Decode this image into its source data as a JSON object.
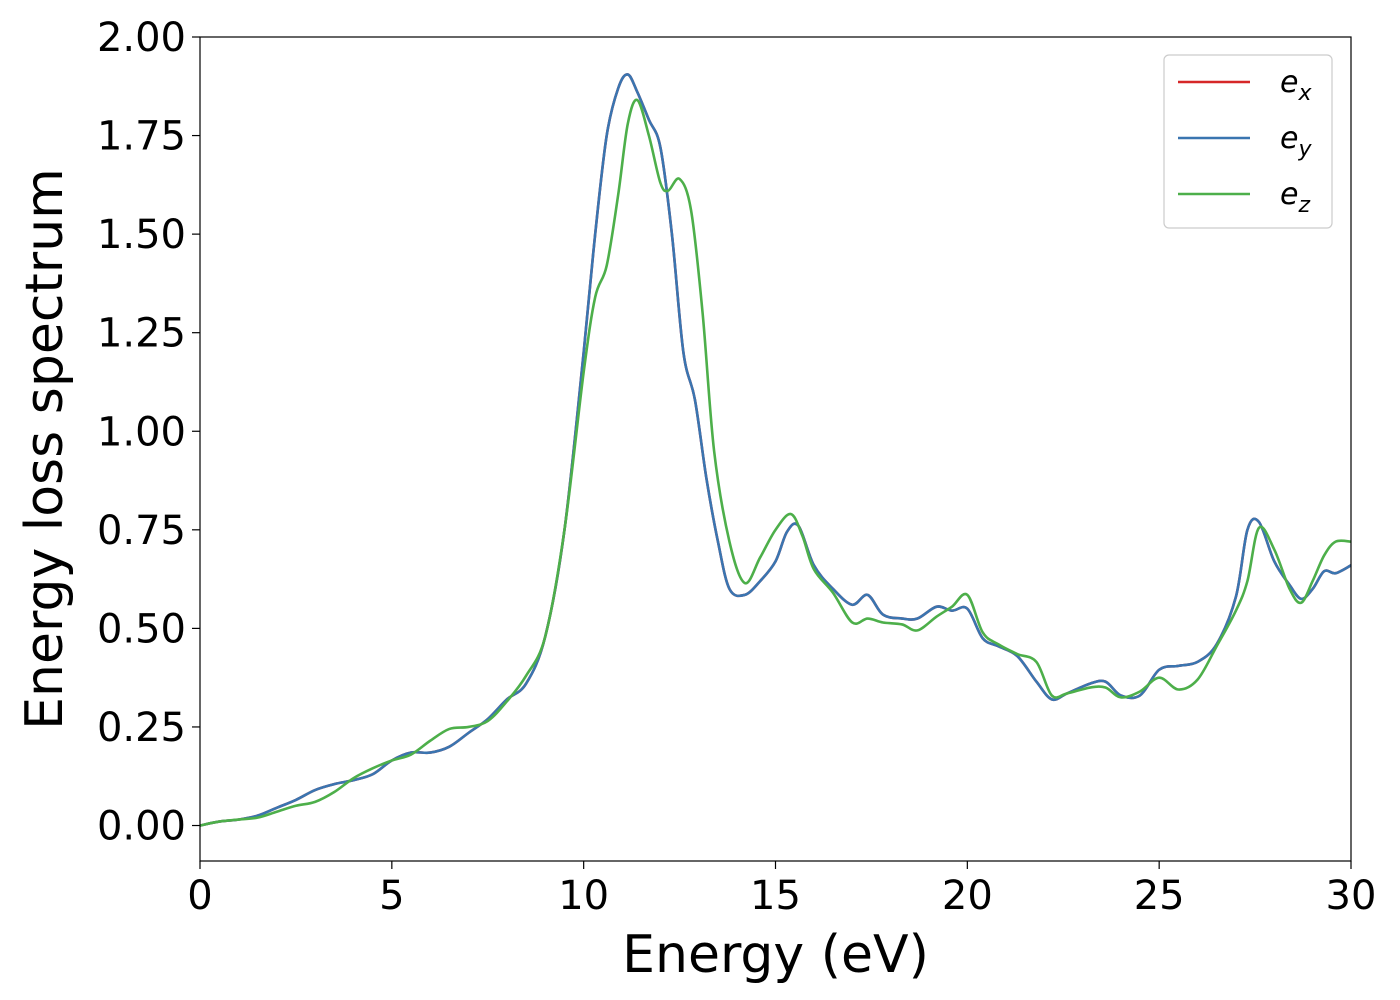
{
  "chart_data": {
    "type": "line",
    "title": "",
    "xlabel": "Energy (eV)",
    "ylabel": "Energy loss spectrum",
    "xlim": [
      0,
      30
    ],
    "ylim": [
      -0.09,
      2.0
    ],
    "xticks": [
      "0",
      "5",
      "10",
      "15",
      "20",
      "25",
      "30"
    ],
    "yticks": [
      "0.00",
      "0.25",
      "0.50",
      "0.75",
      "1.00",
      "1.25",
      "1.50",
      "1.75",
      "2.00"
    ],
    "grid": false,
    "legend_position": "top-right",
    "series": [
      {
        "name": "e_x",
        "legend_base": "e",
        "legend_sub": "x",
        "color": "#d62728",
        "x": [
          0,
          0.5,
          1,
          1.5,
          2,
          2.5,
          3,
          3.5,
          4,
          4.5,
          5,
          5.5,
          6,
          6.5,
          7,
          7.5,
          8,
          8.5,
          9,
          9.5,
          10,
          10.3,
          10.6,
          10.9,
          11.15,
          11.4,
          11.7,
          12,
          12.3,
          12.6,
          12.9,
          13.2,
          13.5,
          13.8,
          14.2,
          14.6,
          15,
          15.3,
          15.6,
          16,
          16.5,
          17,
          17.4,
          17.8,
          18.3,
          18.7,
          19.2,
          19.6,
          20,
          20.4,
          20.8,
          21.3,
          21.8,
          22.2,
          22.6,
          23.2,
          23.6,
          24,
          24.5,
          25,
          25.5,
          26,
          26.5,
          27,
          27.3,
          27.6,
          28,
          28.4,
          28.7,
          29,
          29.3,
          29.6,
          30
        ],
        "values": [
          0.0,
          0.01,
          0.015,
          0.025,
          0.045,
          0.065,
          0.09,
          0.105,
          0.115,
          0.13,
          0.165,
          0.185,
          0.185,
          0.2,
          0.235,
          0.27,
          0.32,
          0.36,
          0.48,
          0.75,
          1.2,
          1.5,
          1.75,
          1.87,
          1.905,
          1.86,
          1.79,
          1.72,
          1.5,
          1.2,
          1.08,
          0.88,
          0.72,
          0.6,
          0.585,
          0.62,
          0.67,
          0.745,
          0.76,
          0.66,
          0.6,
          0.56,
          0.585,
          0.535,
          0.525,
          0.525,
          0.555,
          0.545,
          0.55,
          0.475,
          0.455,
          0.43,
          0.365,
          0.32,
          0.335,
          0.36,
          0.365,
          0.33,
          0.33,
          0.395,
          0.405,
          0.415,
          0.46,
          0.58,
          0.75,
          0.77,
          0.67,
          0.61,
          0.575,
          0.6,
          0.645,
          0.64,
          0.66
        ]
      },
      {
        "name": "e_y",
        "legend_base": "e",
        "legend_sub": "y",
        "color": "#3a75b0",
        "x": [
          0,
          0.5,
          1,
          1.5,
          2,
          2.5,
          3,
          3.5,
          4,
          4.5,
          5,
          5.5,
          6,
          6.5,
          7,
          7.5,
          8,
          8.5,
          9,
          9.5,
          10,
          10.3,
          10.6,
          10.9,
          11.15,
          11.4,
          11.7,
          12,
          12.3,
          12.6,
          12.9,
          13.2,
          13.5,
          13.8,
          14.2,
          14.6,
          15,
          15.3,
          15.6,
          16,
          16.5,
          17,
          17.4,
          17.8,
          18.3,
          18.7,
          19.2,
          19.6,
          20,
          20.4,
          20.8,
          21.3,
          21.8,
          22.2,
          22.6,
          23.2,
          23.6,
          24,
          24.5,
          25,
          25.5,
          26,
          26.5,
          27,
          27.3,
          27.6,
          28,
          28.4,
          28.7,
          29,
          29.3,
          29.6,
          30
        ],
        "values": [
          0.0,
          0.01,
          0.015,
          0.025,
          0.045,
          0.065,
          0.09,
          0.105,
          0.115,
          0.13,
          0.165,
          0.185,
          0.185,
          0.2,
          0.235,
          0.27,
          0.32,
          0.36,
          0.48,
          0.75,
          1.2,
          1.5,
          1.75,
          1.87,
          1.905,
          1.86,
          1.79,
          1.72,
          1.5,
          1.2,
          1.08,
          0.88,
          0.72,
          0.6,
          0.585,
          0.62,
          0.67,
          0.745,
          0.76,
          0.66,
          0.6,
          0.56,
          0.585,
          0.535,
          0.525,
          0.525,
          0.555,
          0.545,
          0.55,
          0.475,
          0.455,
          0.43,
          0.365,
          0.32,
          0.335,
          0.36,
          0.365,
          0.33,
          0.33,
          0.395,
          0.405,
          0.415,
          0.46,
          0.58,
          0.75,
          0.77,
          0.67,
          0.61,
          0.575,
          0.6,
          0.645,
          0.64,
          0.66
        ]
      },
      {
        "name": "e_z",
        "legend_base": "e",
        "legend_sub": "z",
        "color": "#4daf4a",
        "x": [
          0,
          0.5,
          1,
          1.5,
          2,
          2.5,
          3,
          3.5,
          4,
          4.5,
          5,
          5.5,
          6,
          6.5,
          7,
          7.5,
          8,
          8.5,
          9,
          9.5,
          10,
          10.3,
          10.6,
          10.9,
          11.15,
          11.4,
          11.7,
          12,
          12.2,
          12.5,
          12.8,
          13.1,
          13.4,
          13.8,
          14.2,
          14.6,
          15,
          15.4,
          15.7,
          16,
          16.5,
          17,
          17.4,
          17.8,
          18.3,
          18.7,
          19.2,
          19.6,
          20,
          20.4,
          20.8,
          21.3,
          21.8,
          22.2,
          22.6,
          23.2,
          23.6,
          24,
          24.5,
          25,
          25.5,
          26,
          26.5,
          27,
          27.3,
          27.6,
          28,
          28.4,
          28.7,
          29,
          29.3,
          29.6,
          30
        ],
        "values": [
          0.0,
          0.01,
          0.015,
          0.02,
          0.035,
          0.05,
          0.06,
          0.085,
          0.12,
          0.145,
          0.165,
          0.18,
          0.215,
          0.245,
          0.25,
          0.265,
          0.315,
          0.38,
          0.48,
          0.75,
          1.15,
          1.34,
          1.42,
          1.6,
          1.78,
          1.84,
          1.75,
          1.63,
          1.61,
          1.64,
          1.56,
          1.3,
          0.95,
          0.72,
          0.615,
          0.68,
          0.75,
          0.79,
          0.735,
          0.65,
          0.59,
          0.515,
          0.525,
          0.515,
          0.51,
          0.495,
          0.53,
          0.555,
          0.585,
          0.49,
          0.46,
          0.435,
          0.415,
          0.33,
          0.335,
          0.35,
          0.35,
          0.325,
          0.34,
          0.375,
          0.345,
          0.37,
          0.455,
          0.545,
          0.62,
          0.755,
          0.7,
          0.6,
          0.565,
          0.62,
          0.685,
          0.72,
          0.72
        ]
      }
    ]
  }
}
